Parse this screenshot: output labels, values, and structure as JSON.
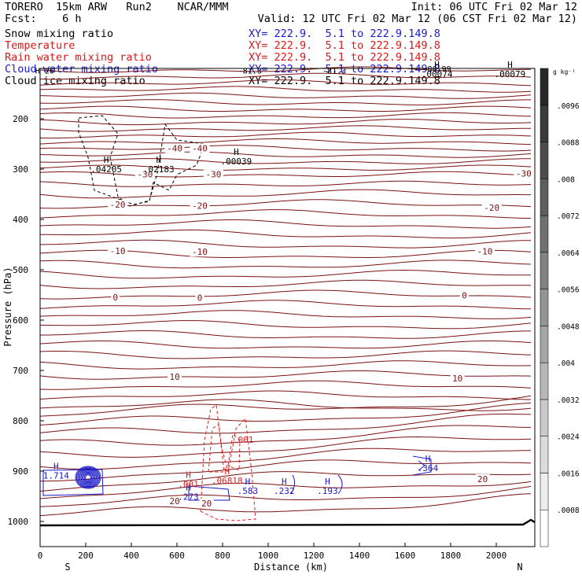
{
  "header": {
    "model": "TORERO  15km ARW   Run2    NCAR/MMM",
    "init": "Init: 06 UTC Fri 02 Mar 12",
    "fcst": "Fcst:    6 h",
    "valid": "Valid: 12 UTC Fri 02 Mar 12 (06 CST Fri 02 Mar 12)"
  },
  "fields": [
    {
      "name": "Snow mixing ratio",
      "xy": "XY= 222.9.  5.1 to 222.9.149.8",
      "color": "#000000"
    },
    {
      "name": "Temperature",
      "xy": "XY= 222.9.  5.1 to 222.9.149.8",
      "color": "#d41a1a"
    },
    {
      "name": "Rain water mixing ratio",
      "xy": "XY= 222.9.  5.1 to 222.9.149.8",
      "color": "#d41a1a"
    },
    {
      "name": "Cloud water mixing ratio",
      "xy": "XY= 222.9.  5.1 to 222.9.149.8",
      "color": "#1a1ac8"
    },
    {
      "name": "Cloud ice mixing ratio",
      "xy": "XY= 222.9.  5.1 to 222.9.149.8",
      "color": "#000000"
    }
  ],
  "colors": {
    "temperature": "#7a1212",
    "rain": "#e02020",
    "cloud_water": "#1a1ac8",
    "snow_ice": "#000000"
  },
  "chart_data": {
    "type": "contour",
    "xlabel": "Distance (km)",
    "ylabel": "Pressure (hPa)",
    "xlim": [
      0,
      2170
    ],
    "ylim": [
      1050,
      100
    ],
    "x_ticks": [
      0,
      200,
      400,
      600,
      800,
      1000,
      1200,
      1400,
      1600,
      1800,
      2000
    ],
    "y_ticks": [
      200,
      300,
      400,
      500,
      600,
      700,
      800,
      900,
      1000
    ],
    "x_end_labels": {
      "left": "S",
      "right": "N"
    },
    "colorbar": {
      "unit": "g kg⁻¹",
      "ticks": [
        ".0008",
        ".0016",
        ".0024",
        ".0032",
        ".004",
        ".0048",
        ".0056",
        ".0064",
        ".0072",
        ".008",
        ".0088",
        ".0096"
      ]
    },
    "temperature_labels": [
      {
        "text": "-40",
        "x": 590,
        "p": 260
      },
      {
        "text": "-40",
        "x": 700,
        "p": 260
      },
      {
        "text": "-30",
        "x": 460,
        "p": 312
      },
      {
        "text": "-30",
        "x": 760,
        "p": 312
      },
      {
        "text": "-30",
        "x": 2120,
        "p": 310
      },
      {
        "text": "-20",
        "x": 340,
        "p": 372
      },
      {
        "text": "-20",
        "x": 700,
        "p": 374
      },
      {
        "text": "-20",
        "x": 1980,
        "p": 378
      },
      {
        "text": "-10",
        "x": 340,
        "p": 464
      },
      {
        "text": "-10",
        "x": 700,
        "p": 466
      },
      {
        "text": "-10",
        "x": 1950,
        "p": 465
      },
      {
        "text": "0",
        "x": 330,
        "p": 556
      },
      {
        "text": "0",
        "x": 700,
        "p": 557
      },
      {
        "text": "0",
        "x": 1860,
        "p": 552
      },
      {
        "text": "10",
        "x": 590,
        "p": 714
      },
      {
        "text": "10",
        "x": 1830,
        "p": 717
      },
      {
        "text": "20",
        "x": 590,
        "p": 961
      },
      {
        "text": "20",
        "x": 1940,
        "p": 917
      },
      {
        "text": "20",
        "x": 730,
        "p": 966
      }
    ],
    "maxima": [
      {
        "mark": "H",
        "value": ".04205",
        "x": 290,
        "p": 306,
        "color": "#000000"
      },
      {
        "mark": "H",
        "value": ".02183",
        "x": 520,
        "p": 306,
        "color": "#000000"
      },
      {
        "mark": "H",
        "value": ".00039",
        "x": 860,
        "p": 291,
        "color": "#000000"
      },
      {
        "mark": "H",
        "value": ".00079",
        "x": 2060,
        "p": 117,
        "color": "#000000"
      },
      {
        "mark": "H",
        "value": ".00074",
        "x": 1740,
        "p": 117,
        "color": "#000000"
      },
      {
        "mark": "H",
        "value": "1.714",
        "x": 70,
        "p": 915,
        "color": "#1a1ac8"
      },
      {
        "mark": "H",
        "value": ".273",
        "x": 650,
        "p": 957,
        "color": "#1a1ac8"
      },
      {
        "mark": "H",
        "value": ".583",
        "x": 910,
        "p": 945,
        "color": "#1a1ac8"
      },
      {
        "mark": "H",
        "value": ".232",
        "x": 1070,
        "p": 945,
        "color": "#1a1ac8"
      },
      {
        "mark": "H",
        "value": ".193",
        "x": 1260,
        "p": 945,
        "color": "#1a1ac8"
      },
      {
        "mark": "H",
        "value": ".364",
        "x": 1700,
        "p": 900,
        "color": "#1a1ac8"
      },
      {
        "mark": "H",
        "value": ".001",
        "x": 650,
        "p": 932,
        "color": "#e02020"
      },
      {
        "mark": "H",
        "value": ".06818",
        "x": 820,
        "p": 925,
        "color": "#e02020"
      },
      {
        "mark": "",
        "value": ".001",
        "x": 890,
        "p": 844,
        "color": "#e02020"
      }
    ],
    "top_labels": [
      {
        "text": "-81.3",
        "x": 920,
        "p": 110
      },
      {
        "text": "-81.3",
        "x": 1290,
        "p": 110
      },
      {
        "text": "-80.99",
        "x": 1740,
        "p": 106
      },
      {
        "text": "H 26",
        "x": 20,
        "p": 110
      }
    ]
  }
}
